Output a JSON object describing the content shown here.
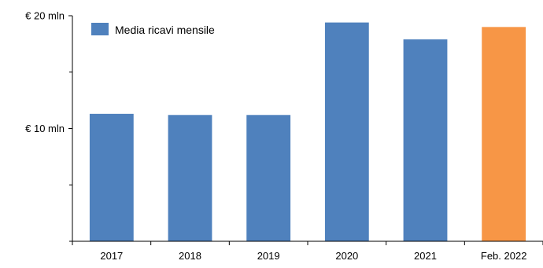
{
  "chart_data": {
    "type": "bar",
    "categories": [
      "2017",
      "2018",
      "2019",
      "2020",
      "2021",
      "Feb. 2022"
    ],
    "series": [
      {
        "name": "Media ricavi mensile",
        "values": [
          11.3,
          11.2,
          11.2,
          19.4,
          17.9,
          19.0
        ]
      }
    ],
    "bar_colors": [
      "#4f81bd",
      "#4f81bd",
      "#4f81bd",
      "#4f81bd",
      "#4f81bd",
      "#f79646"
    ],
    "ylim": [
      0,
      20
    ],
    "yticks": [
      {
        "value": 10,
        "label": "€ 10 mln"
      },
      {
        "value": 20,
        "label": "€ 20 mln"
      }
    ],
    "minor_yticks": [
      5,
      15
    ],
    "legend": {
      "label": "Media ricavi mensile",
      "color": "#4f81bd",
      "position": "top-left"
    },
    "grid": false,
    "title": "",
    "xlabel": "",
    "ylabel": ""
  }
}
